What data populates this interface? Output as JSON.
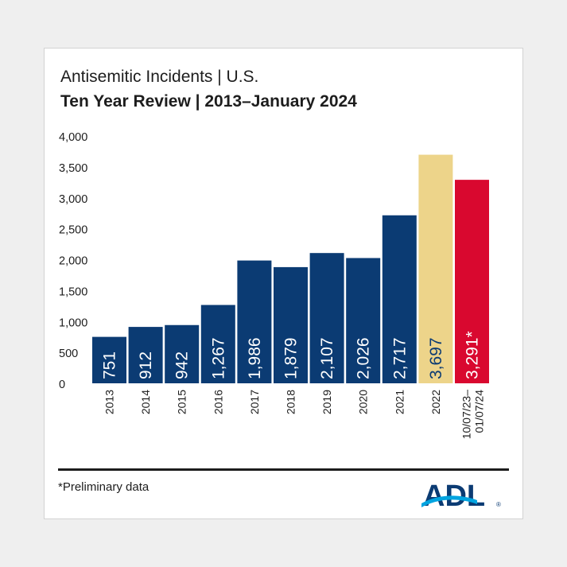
{
  "header": {
    "title": "Antisemitic Incidents | U.S.",
    "subtitle": "Ten Year Review | 2013–January 2024"
  },
  "footnote": "*Preliminary data",
  "logo": {
    "text": "ADL",
    "mark": "®"
  },
  "colors": {
    "navy": "#0b3b73",
    "gold": "#edd48a",
    "red": "#d9082f",
    "text": "#1d1d1d"
  },
  "chart_data": {
    "type": "bar",
    "title": "Ten Year Review | 2013–January 2024",
    "categories": [
      "2013",
      "2014",
      "2015",
      "2016",
      "2017",
      "2018",
      "2019",
      "2020",
      "2021",
      "2022",
      "10/07/23– 01/07/24"
    ],
    "values": [
      751,
      912,
      942,
      1267,
      1986,
      1879,
      2107,
      2026,
      2717,
      3697,
      3291
    ],
    "value_labels": [
      "751",
      "912",
      "942",
      "1,267",
      "1,986",
      "1,879",
      "2,107",
      "2,026",
      "2,717",
      "3,697",
      "3,291*"
    ],
    "bar_colors": [
      "navy",
      "navy",
      "navy",
      "navy",
      "navy",
      "navy",
      "navy",
      "navy",
      "navy",
      "gold",
      "red"
    ],
    "ylim": [
      0,
      4000
    ],
    "yticks": [
      0,
      500,
      1000,
      1500,
      2000,
      2500,
      3000,
      3500,
      4000
    ],
    "ytick_labels": [
      "0",
      "500",
      "1,000",
      "1,500",
      "2,000",
      "2,500",
      "3,000",
      "3,500",
      "4,000"
    ],
    "xlabel": "",
    "ylabel": "",
    "grid": false,
    "legend": "none"
  }
}
